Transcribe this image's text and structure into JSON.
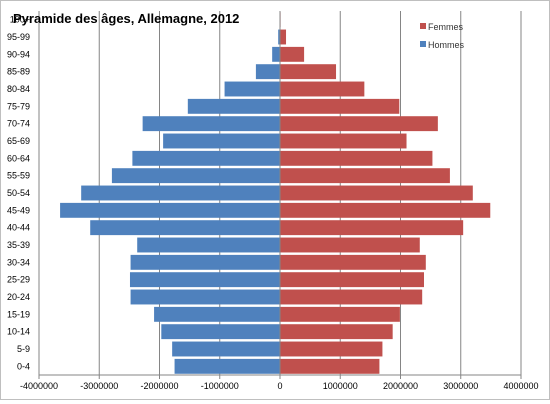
{
  "chart_data": {
    "type": "bar",
    "orientation": "horizontal",
    "title": "Pyramide des âges, Allemagne, 2012",
    "categories": [
      "0-4",
      "5-9",
      "10-14",
      "15-19",
      "20-24",
      "25-29",
      "30-34",
      "35-39",
      "40-44",
      "45-49",
      "50-54",
      "55-59",
      "60-64",
      "65-69",
      "70-74",
      "75-79",
      "80-84",
      "85-89",
      "90-94",
      "95-99",
      "100+"
    ],
    "series": [
      {
        "name": "Femmes",
        "color": "#c0504d",
        "values": [
          1650000,
          1700000,
          1870000,
          1990000,
          2360000,
          2390000,
          2420000,
          2320000,
          3040000,
          3490000,
          3200000,
          2820000,
          2530000,
          2100000,
          2620000,
          1980000,
          1400000,
          930000,
          400000,
          100000,
          10000
        ]
      },
      {
        "name": "Hommes",
        "color": "#4f81bd",
        "values": [
          -1750000,
          -1790000,
          -1970000,
          -2090000,
          -2480000,
          -2490000,
          -2480000,
          -2370000,
          -3150000,
          -3650000,
          -3300000,
          -2790000,
          -2450000,
          -1940000,
          -2280000,
          -1530000,
          -920000,
          -400000,
          -130000,
          -30000,
          -5000
        ]
      }
    ],
    "xticks": [
      -4000000,
      -3000000,
      -2000000,
      -1000000,
      0,
      1000000,
      2000000,
      3000000,
      4000000
    ],
    "xtick_labels": [
      "-4000000",
      "-3000000",
      "-2000000",
      "-1000000",
      "0",
      "1000000",
      "2000000",
      "3000000",
      "4000000"
    ],
    "xlim": [
      -4000000,
      4000000
    ],
    "grid": "vertical",
    "legend_position": "top-right",
    "xlabel": "",
    "ylabel": ""
  }
}
